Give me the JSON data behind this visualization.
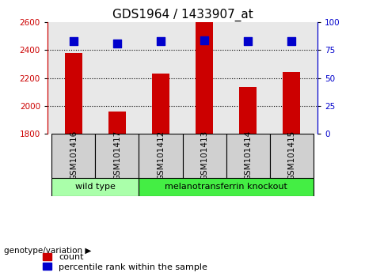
{
  "title": "GDS1964 / 1433907_at",
  "samples": [
    "GSM101416",
    "GSM101417",
    "GSM101412",
    "GSM101413",
    "GSM101414",
    "GSM101415"
  ],
  "counts": [
    2380,
    1960,
    2230,
    2600,
    2135,
    2245
  ],
  "percentile_ranks": [
    83,
    81,
    83,
    84,
    83,
    83
  ],
  "ylim_left": [
    1800,
    2600
  ],
  "ylim_right": [
    0,
    100
  ],
  "yticks_left": [
    1800,
    2000,
    2200,
    2400,
    2600
  ],
  "yticks_right": [
    0,
    25,
    50,
    75,
    100
  ],
  "bar_color": "#cc0000",
  "dot_color": "#0000cc",
  "groups": [
    {
      "label": "wild type",
      "indices": [
        0,
        1
      ],
      "color": "#aaffaa"
    },
    {
      "label": "melanotransferrin knockout",
      "indices": [
        2,
        3,
        4,
        5
      ],
      "color": "#44ee44"
    }
  ],
  "xlabel_group": "genotype/variation",
  "legend_count_label": "count",
  "legend_percentile_label": "percentile rank within the sample",
  "bar_width": 0.4,
  "dot_size": 55,
  "tick_label_fontsize": 7.5,
  "axis_label_fontsize": 8,
  "title_fontsize": 11,
  "legend_fontsize": 8
}
